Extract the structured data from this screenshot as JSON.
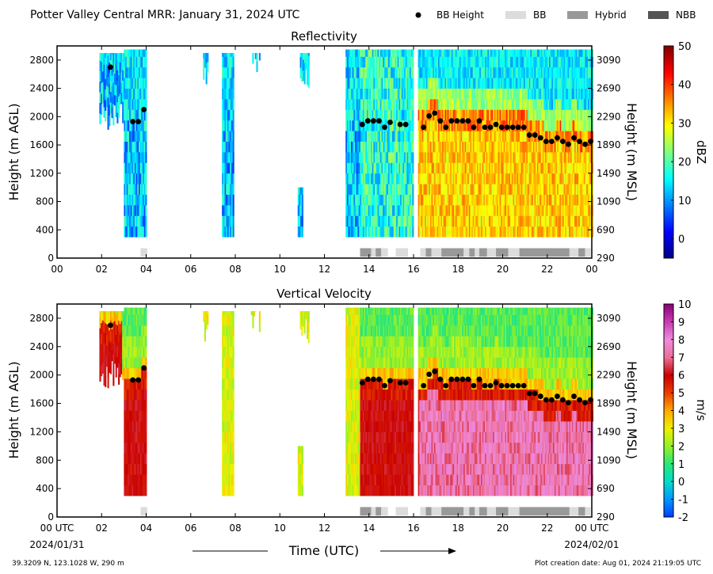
{
  "header": {
    "title": "Potter Valley Central MRR:  January 31, 2024 UTC",
    "legend": [
      {
        "label": "BB Height",
        "kind": "dot",
        "color": "#000000"
      },
      {
        "label": "BB",
        "kind": "swatch",
        "color": "#dcdcdc"
      },
      {
        "label": "Hybrid",
        "kind": "swatch",
        "color": "#999999"
      },
      {
        "label": "NBB",
        "kind": "swatch",
        "color": "#555555"
      }
    ]
  },
  "footer": {
    "location": "39.3209 N, 123.1028 W, 290 m",
    "created": "Plot creation date: Aug 01, 2024 21:19:05 UTC",
    "xlabel": "Time (UTC)",
    "start_date": "2024/01/31",
    "end_date": "2024/02/01"
  },
  "chart_data": [
    {
      "type": "heatmap",
      "title": "Reflectivity",
      "ylabel_left": "Height (m AGL)",
      "ylabel_right": "Height (m MSL)",
      "colorbar_label": "dBZ",
      "x_ticks": [
        "00",
        "02",
        "04",
        "06",
        "08",
        "10",
        "12",
        "14",
        "16",
        "18",
        "20",
        "22",
        "00"
      ],
      "xlim_hours": [
        0,
        24
      ],
      "y_ticks_agl": [
        0,
        400,
        800,
        1200,
        1600,
        2000,
        2400,
        2800
      ],
      "y_ticks_msl": [
        290,
        690,
        1090,
        1490,
        1890,
        2290,
        2690,
        3090
      ],
      "ylim_m_agl": [
        0,
        3000
      ],
      "colorbar": {
        "min": -5,
        "max": 50,
        "ticks": [
          0,
          10,
          20,
          30,
          40,
          50
        ],
        "scheme": "jet"
      }
    },
    {
      "type": "heatmap",
      "title": "Vertical Velocity",
      "ylabel_left": "Height (m AGL)",
      "ylabel_right": "Height (m MSL)",
      "colorbar_label": "m/s",
      "x_ticks": [
        "00 UTC",
        "02",
        "04",
        "06",
        "08",
        "10",
        "12",
        "14",
        "16",
        "18",
        "20",
        "22",
        "00 UTC"
      ],
      "xlim_hours": [
        0,
        24
      ],
      "y_ticks_agl": [
        0,
        400,
        800,
        1200,
        1600,
        2000,
        2400,
        2800
      ],
      "y_ticks_msl": [
        290,
        690,
        1090,
        1490,
        1890,
        2290,
        2690,
        3090
      ],
      "ylim_m_agl": [
        0,
        3000
      ],
      "colorbar": {
        "min": -2,
        "max": 10,
        "ticks": [
          -2,
          -1,
          0,
          1,
          2,
          3,
          4,
          5,
          6,
          7,
          8,
          9,
          10
        ],
        "scheme": "velocity"
      }
    }
  ],
  "bb_height": [
    {
      "t": 2.4,
      "h": 2700
    },
    {
      "t": 3.4,
      "h": 1930
    },
    {
      "t": 3.65,
      "h": 1930
    },
    {
      "t": 3.9,
      "h": 2100
    },
    {
      "t": 13.7,
      "h": 1890
    },
    {
      "t": 13.95,
      "h": 1940
    },
    {
      "t": 14.2,
      "h": 1940
    },
    {
      "t": 14.45,
      "h": 1940
    },
    {
      "t": 14.7,
      "h": 1850
    },
    {
      "t": 14.95,
      "h": 1920
    },
    {
      "t": 15.4,
      "h": 1890
    },
    {
      "t": 15.65,
      "h": 1890
    },
    {
      "t": 16.45,
      "h": 1850
    },
    {
      "t": 16.7,
      "h": 2010
    },
    {
      "t": 16.95,
      "h": 2050
    },
    {
      "t": 17.2,
      "h": 1940
    },
    {
      "t": 17.45,
      "h": 1850
    },
    {
      "t": 17.7,
      "h": 1940
    },
    {
      "t": 17.95,
      "h": 1940
    },
    {
      "t": 18.2,
      "h": 1940
    },
    {
      "t": 18.45,
      "h": 1940
    },
    {
      "t": 18.7,
      "h": 1850
    },
    {
      "t": 18.95,
      "h": 1940
    },
    {
      "t": 19.2,
      "h": 1850
    },
    {
      "t": 19.45,
      "h": 1850
    },
    {
      "t": 19.7,
      "h": 1890
    },
    {
      "t": 19.95,
      "h": 1850
    },
    {
      "t": 20.2,
      "h": 1850
    },
    {
      "t": 20.45,
      "h": 1850
    },
    {
      "t": 20.7,
      "h": 1850
    },
    {
      "t": 20.95,
      "h": 1850
    },
    {
      "t": 21.2,
      "h": 1740
    },
    {
      "t": 21.45,
      "h": 1740
    },
    {
      "t": 21.7,
      "h": 1700
    },
    {
      "t": 21.95,
      "h": 1650
    },
    {
      "t": 22.2,
      "h": 1650
    },
    {
      "t": 22.45,
      "h": 1700
    },
    {
      "t": 22.7,
      "h": 1650
    },
    {
      "t": 22.95,
      "h": 1610
    },
    {
      "t": 23.2,
      "h": 1700
    },
    {
      "t": 23.45,
      "h": 1650
    },
    {
      "t": 23.7,
      "h": 1610
    },
    {
      "t": 23.95,
      "h": 1650
    }
  ],
  "bb_type_segments": [
    {
      "start": 3.75,
      "end": 4.05,
      "type": "BB"
    },
    {
      "start": 13.6,
      "end": 14.1,
      "type": "Hybrid"
    },
    {
      "start": 14.1,
      "end": 14.3,
      "type": "BB"
    },
    {
      "start": 14.3,
      "end": 14.55,
      "type": "Hybrid"
    },
    {
      "start": 14.55,
      "end": 14.85,
      "type": "BB"
    },
    {
      "start": 15.2,
      "end": 15.75,
      "type": "BB"
    },
    {
      "start": 16.3,
      "end": 16.55,
      "type": "BB"
    },
    {
      "start": 16.55,
      "end": 16.8,
      "type": "Hybrid"
    },
    {
      "start": 16.8,
      "end": 17.25,
      "type": "BB"
    },
    {
      "start": 17.25,
      "end": 18.25,
      "type": "Hybrid"
    },
    {
      "start": 18.25,
      "end": 18.5,
      "type": "BB"
    },
    {
      "start": 18.5,
      "end": 18.75,
      "type": "Hybrid"
    },
    {
      "start": 18.75,
      "end": 18.95,
      "type": "BB"
    },
    {
      "start": 18.95,
      "end": 19.3,
      "type": "Hybrid"
    },
    {
      "start": 19.3,
      "end": 19.7,
      "type": "BB"
    },
    {
      "start": 19.7,
      "end": 20.25,
      "type": "Hybrid"
    },
    {
      "start": 20.25,
      "end": 20.75,
      "type": "BB"
    },
    {
      "start": 20.75,
      "end": 23.0,
      "type": "Hybrid"
    },
    {
      "start": 23.0,
      "end": 23.4,
      "type": "BB"
    },
    {
      "start": 23.4,
      "end": 23.7,
      "type": "Hybrid"
    },
    {
      "start": 23.7,
      "end": 23.95,
      "type": "BB"
    }
  ],
  "echo_regions": [
    {
      "start": 1.9,
      "end": 3.0,
      "top": 2900,
      "bottom_min": 1800
    },
    {
      "start": 3.0,
      "end": 4.0,
      "top": 2950,
      "bottom_min": 300
    },
    {
      "start": 6.55,
      "end": 6.75,
      "top": 2900,
      "bottom_min": 2400
    },
    {
      "start": 7.4,
      "end": 7.9,
      "top": 2900,
      "bottom_min": 300
    },
    {
      "start": 8.7,
      "end": 9.1,
      "top": 2900,
      "bottom_min": 2600
    },
    {
      "start": 10.8,
      "end": 11.0,
      "top": 1000,
      "bottom_min": 300
    },
    {
      "start": 10.9,
      "end": 11.3,
      "top": 2900,
      "bottom_min": 2400
    },
    {
      "start": 12.95,
      "end": 13.6,
      "top": 2950,
      "bottom_min": 300
    },
    {
      "start": 13.6,
      "end": 16.0,
      "top": 2950,
      "bottom_min": 300
    },
    {
      "start": 16.2,
      "end": 24.0,
      "top": 2950,
      "bottom_min": 300
    }
  ]
}
